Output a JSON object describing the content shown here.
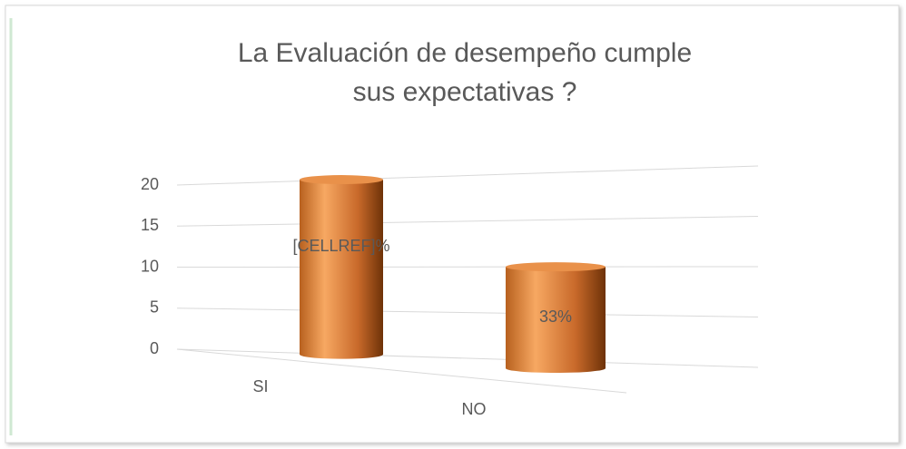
{
  "chart_data": {
    "type": "bar3d",
    "title": "La Evaluación de desempeño cumple sus expectativas ?",
    "categories": [
      "SI",
      "NO"
    ],
    "values": [
      20,
      10
    ],
    "annotations": [
      "[CELLREF]%",
      "33%"
    ],
    "color": "#d9782d",
    "ylim": [
      0,
      20
    ],
    "yticks": [
      0,
      5,
      10,
      15,
      20
    ],
    "grid": true
  }
}
